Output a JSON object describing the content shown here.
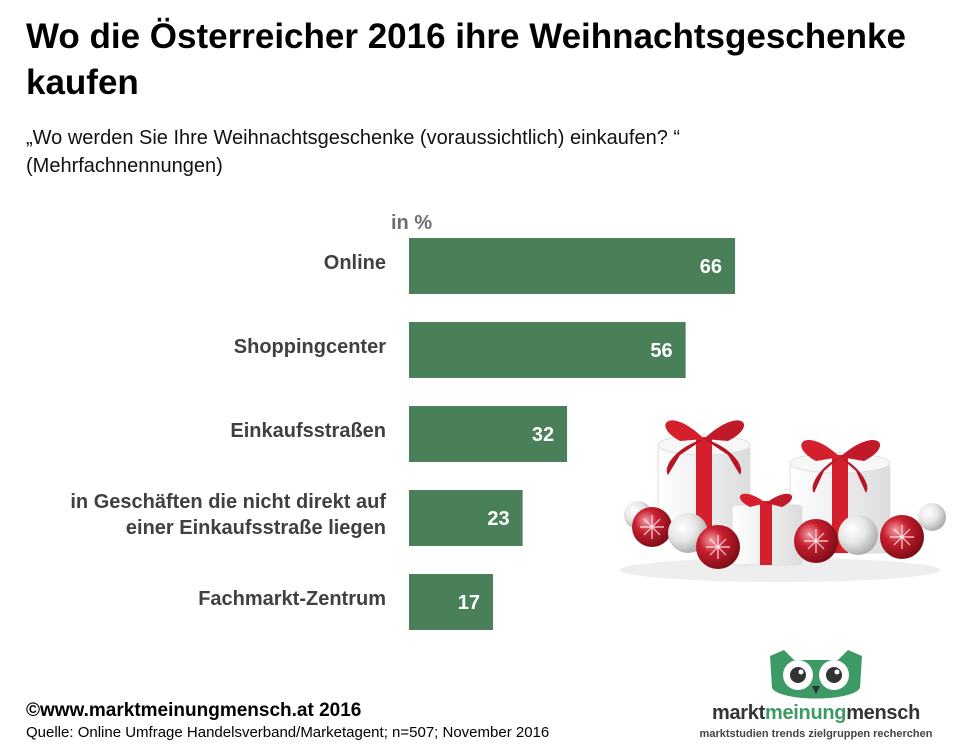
{
  "title": "Wo die Österreicher 2016 ihre Weihnachtsgeschenke kaufen",
  "subtitle_line1": "„Wo werden Sie Ihre Weihnachtsgeschenke (voraussichtlich) einkaufen? “",
  "subtitle_line2": "(Mehrfachnennungen)",
  "colors": {
    "bar": "#4a8059",
    "bar_label": "#ffffff",
    "category_label": "#404040",
    "unit": "#6e6e6e",
    "logo_green": "#3e9a64"
  },
  "chart_data": {
    "type": "bar",
    "orientation": "horizontal",
    "unit_label": "in %",
    "categories": [
      "Online",
      "Shoppingcenter",
      "Einkaufsstraßen",
      "in Geschäften die nicht direkt auf einer Einkaufsstraße liegen",
      "Fachmarkt-Zentrum"
    ],
    "category_lines": [
      [
        "Online"
      ],
      [
        "Shoppingcenter"
      ],
      [
        "Einkaufsstraßen"
      ],
      [
        "in Geschäften die nicht direkt auf",
        "einer Einkaufsstraße liegen"
      ],
      [
        "Fachmarkt-Zentrum"
      ]
    ],
    "values": [
      66,
      56,
      32,
      23,
      17
    ],
    "data_labels": [
      "66",
      "56",
      "32",
      "23",
      "17"
    ],
    "xlim": [
      0,
      100
    ],
    "grid": false,
    "legend": false
  },
  "illustration": {
    "icon": "christmas-gifts-and-baubles"
  },
  "footer": {
    "copyright": "©www.marktmeinungmensch.at 2016",
    "source": "Quelle: Online Umfrage Handelsverband/Marketagent; n=507; November 2016"
  },
  "logo": {
    "icon": "owl-icon",
    "word1": "markt",
    "word2": "meinung",
    "word3": "mensch",
    "tagline": "marktstudien trends zielgruppen recherchen"
  }
}
